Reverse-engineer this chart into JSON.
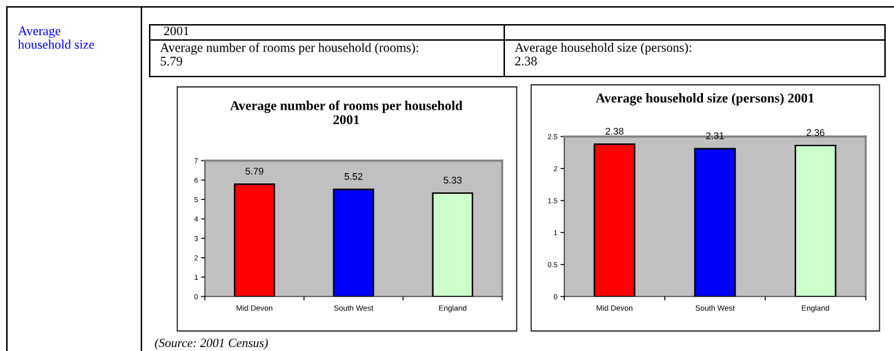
{
  "chart_data": [
    {
      "type": "other",
      "title": "Average\nhousehold size",
      "annotations": [
        "2001",
        "Average number of rooms per household (rooms):\n5.79",
        "Average household size (persons):\n2.38"
      ]
    },
    {
      "type": "bar",
      "title": "Average number of rooms per household\n2001",
      "categories": [
        "Mid Devon",
        "South West",
        "England"
      ],
      "values": [
        5.79,
        5.52,
        5.33
      ],
      "colors": [
        "#ff0000",
        "#0000ff",
        "#ccffcc"
      ],
      "ylim": [
        0,
        7
      ],
      "yticks": [
        0,
        1,
        2,
        3,
        4,
        5,
        6,
        7
      ],
      "data_labels": true,
      "annotations": [
        "(Source: 2001 Census)"
      ]
    },
    {
      "type": "bar",
      "title": "Average household size (persons) 2001",
      "categories": [
        "Mid Devon",
        "South West",
        "England"
      ],
      "values": [
        2.38,
        2.31,
        2.36
      ],
      "colors": [
        "#ff0000",
        "#0000ff",
        "#ccffcc"
      ],
      "ylim": [
        0,
        2.5
      ],
      "yticks": [
        0,
        0.5,
        1,
        1.5,
        2,
        2.5
      ],
      "data_labels": true
    }
  ]
}
